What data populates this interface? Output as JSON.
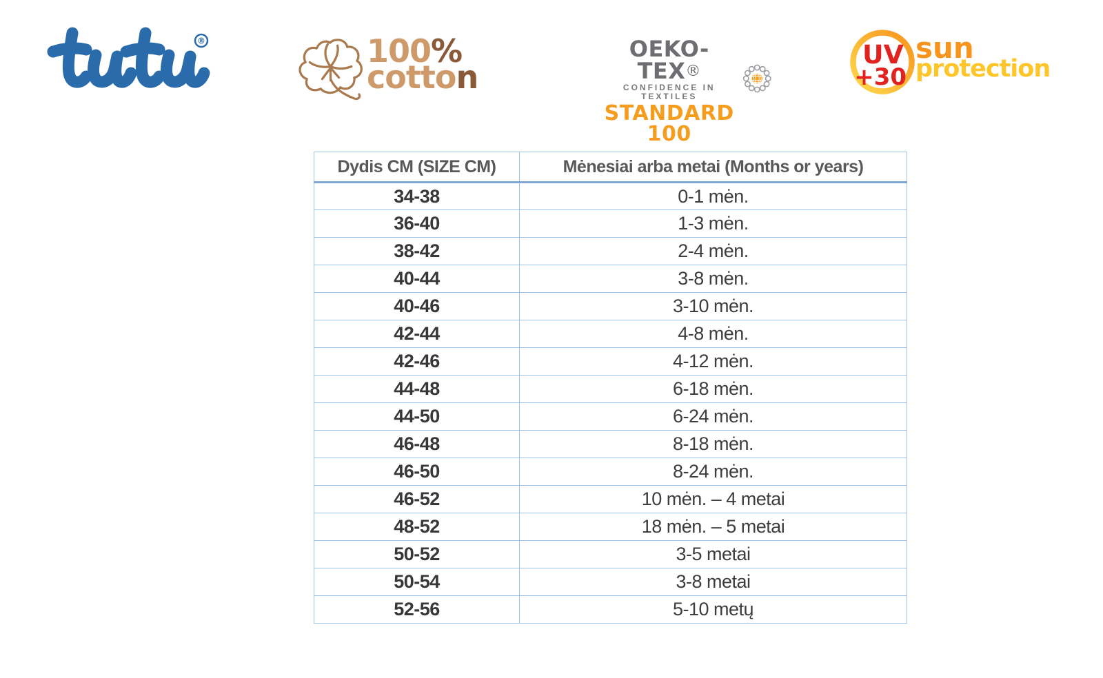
{
  "logos": {
    "tutu": {
      "text": "tutu",
      "registered": "®",
      "color": "#2a6cab"
    },
    "cotton": {
      "text": "100% cotton",
      "num": "100",
      "pct": "%",
      "word_a": "cotto",
      "word_b": "n",
      "light_color": "#cf9a69",
      "dark_color": "#8a5a38",
      "outline_color": "#a87a4e"
    },
    "oeko": {
      "brand": "OEKO-TEX",
      "registered": "®",
      "tagline": "CONFIDENCE IN TEXTILES",
      "standard": "STANDARD 100",
      "gray_color": "#6d6e71",
      "orange_color": "#f59d1e"
    },
    "uv": {
      "badge_line1": "UV",
      "badge_line2": "+30",
      "word1": "sun",
      "word2": "protection",
      "red_color": "#e0231f",
      "orange_color": "#f7941d",
      "yellow_color": "#ffc62b"
    }
  },
  "table": {
    "border_color": "#9dc3e6",
    "header_rule_color": "#7ea6d9",
    "header_text_color": "#595959",
    "headers": [
      "Dydis CM (SIZE CM)",
      "Mėnesiai arba metai (Months or years)"
    ],
    "rows": [
      [
        "34-38",
        "0-1 mėn."
      ],
      [
        "36-40",
        "1-3 mėn."
      ],
      [
        "38-42",
        "2-4 mėn."
      ],
      [
        "40-44",
        "3-8 mėn."
      ],
      [
        "40-46",
        "3-10 mėn."
      ],
      [
        "42-44",
        "4-8 mėn."
      ],
      [
        "42-46",
        "4-12 mėn."
      ],
      [
        "44-48",
        "6-18 mėn."
      ],
      [
        "44-50",
        "6-24 mėn."
      ],
      [
        "46-48",
        "8-18 mėn."
      ],
      [
        "46-50",
        "8-24 mėn."
      ],
      [
        "46-52",
        "10 mėn. – 4 metai"
      ],
      [
        "48-52",
        "18 mėn. – 5 metai"
      ],
      [
        "50-52",
        "3-5 metai"
      ],
      [
        "50-54",
        "3-8 metai"
      ],
      [
        "52-56",
        "5-10 metų"
      ]
    ]
  }
}
